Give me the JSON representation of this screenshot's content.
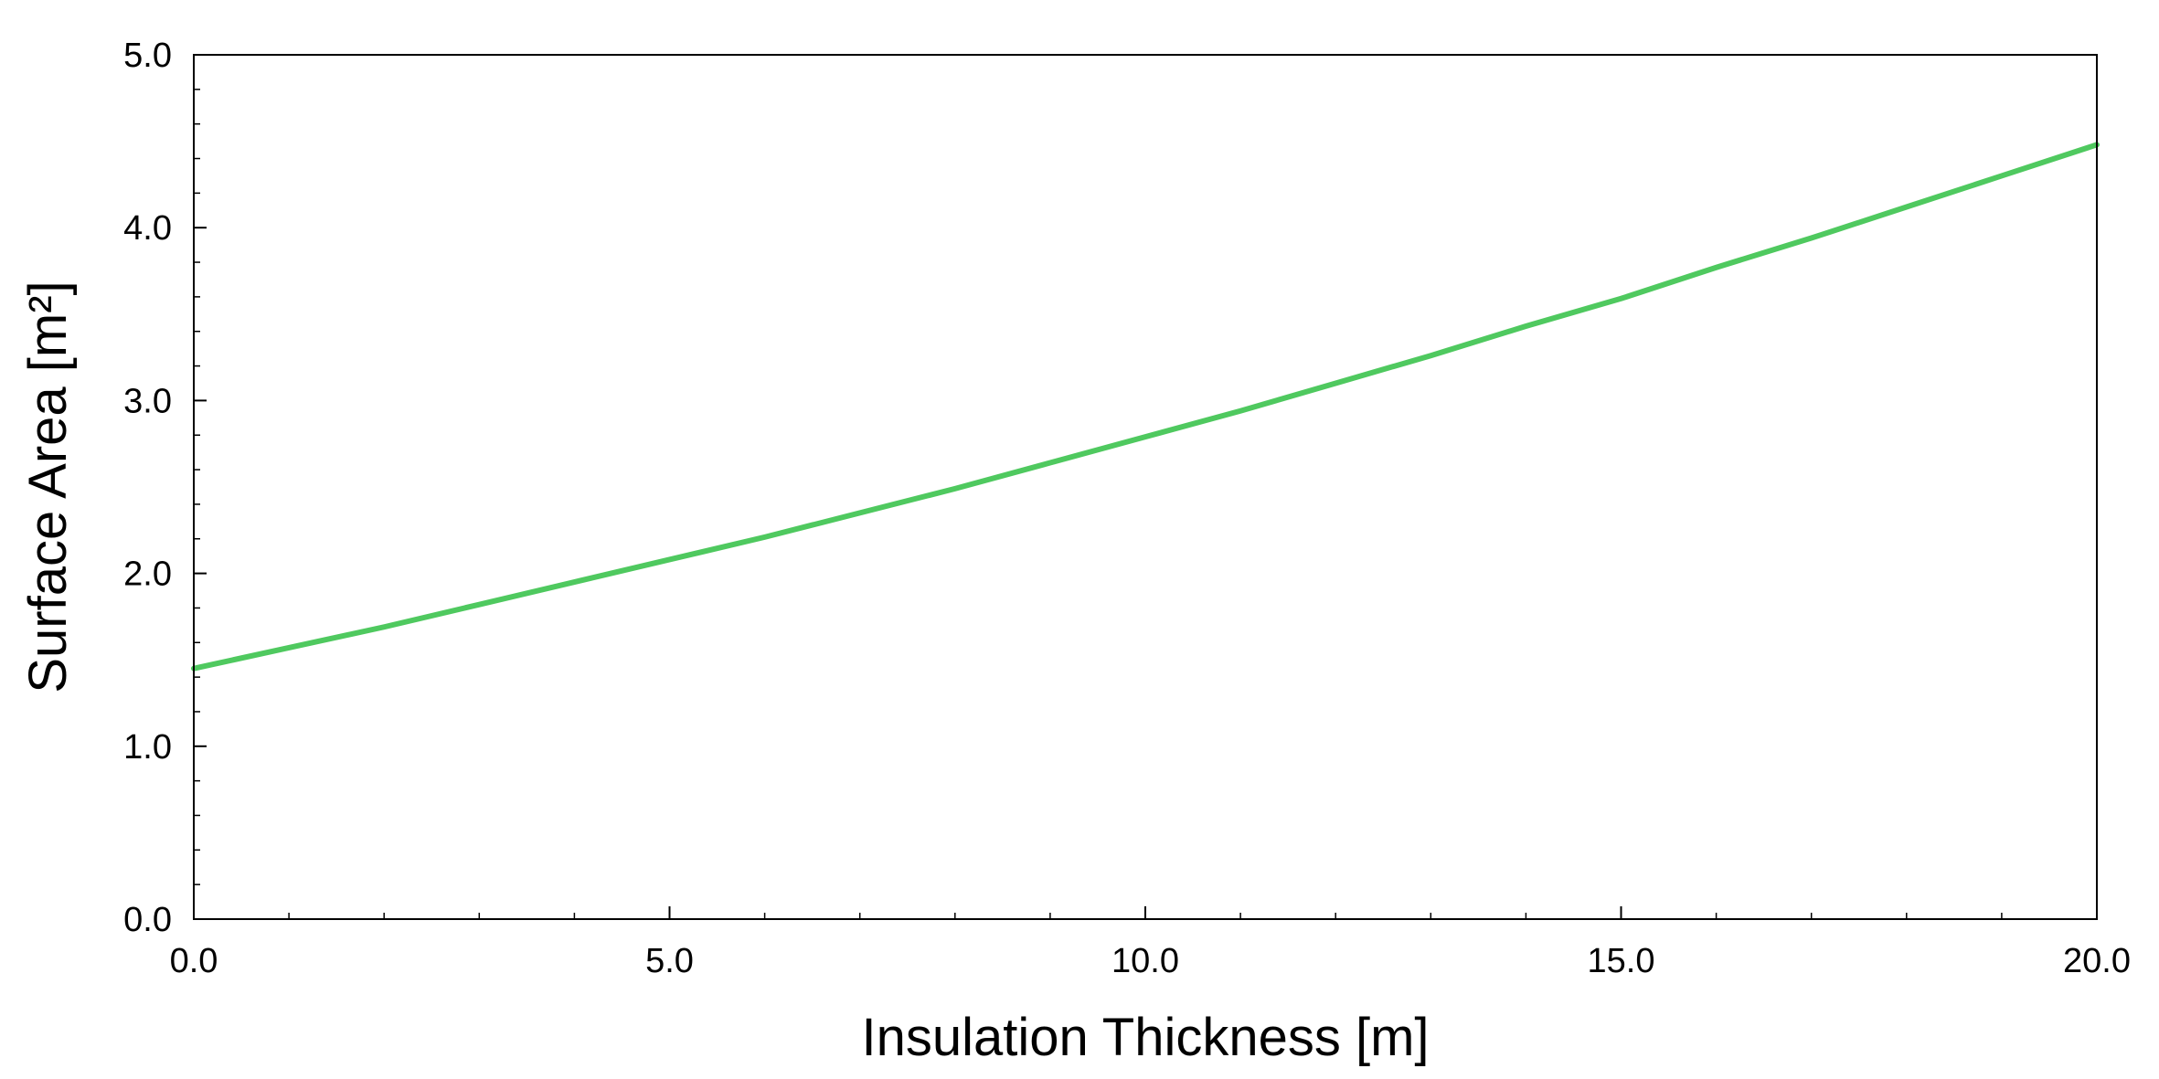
{
  "chart_data": {
    "type": "line",
    "xlabel": "Insulation Thickness [m]",
    "ylabel": "Surface Area [m²]",
    "xlim": [
      0.0,
      20.0
    ],
    "ylim": [
      0.0,
      5.0
    ],
    "x_ticks": [
      "0.0",
      "5.0",
      "10.0",
      "15.0",
      "20.0"
    ],
    "y_ticks": [
      "0.0",
      "1.0",
      "2.0",
      "3.0",
      "4.0",
      "5.0"
    ],
    "x_tick_values": [
      0,
      5,
      10,
      15,
      20
    ],
    "y_tick_values": [
      0,
      1,
      2,
      3,
      4,
      5
    ],
    "x_minor_step": 1.0,
    "y_minor_step": 0.2,
    "grid": false,
    "legend": "none",
    "series": [
      {
        "color": "#4fc95f",
        "x": [
          0,
          1,
          2,
          3,
          4,
          5,
          6,
          7,
          8,
          9,
          10,
          11,
          12,
          13,
          14,
          15,
          16,
          17,
          18,
          19,
          20
        ],
        "y": [
          1.45,
          1.57,
          1.69,
          1.82,
          1.95,
          2.08,
          2.21,
          2.35,
          2.49,
          2.64,
          2.79,
          2.94,
          3.1,
          3.26,
          3.43,
          3.59,
          3.77,
          3.94,
          4.12,
          4.3,
          4.48
        ]
      }
    ]
  }
}
